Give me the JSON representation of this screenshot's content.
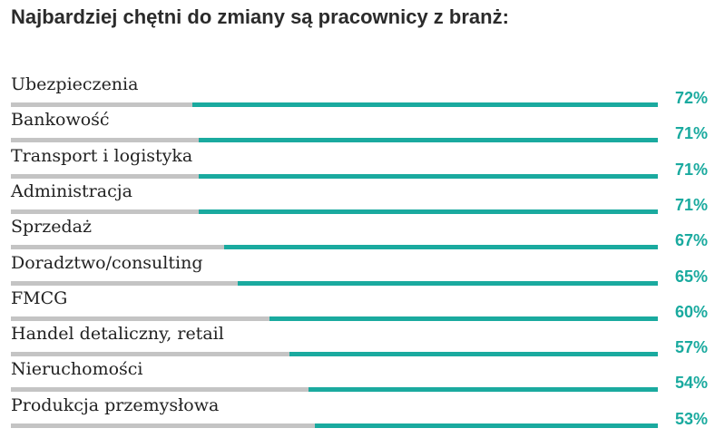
{
  "chart_data": {
    "type": "bar",
    "title": "Najbardziej chętni do zmiany są pracownicy z branż:",
    "categories": [
      "Ubezpieczenia",
      "Bankowość",
      "Transport i logistyka",
      "Administracja",
      "Sprzedaż",
      "Doradztwo/consulting",
      "FMCG",
      "Handel detaliczny,  retail",
      "Nieruchomości",
      "Produkcja przemysłowa"
    ],
    "values": [
      72,
      71,
      71,
      71,
      67,
      65,
      60,
      57,
      54,
      53
    ],
    "value_labels": [
      "72%",
      "71%",
      "71%",
      "71%",
      "67%",
      "65%",
      "60%",
      "57%",
      "54%",
      "53%"
    ],
    "ylim": [
      0,
      100
    ],
    "unit": "%",
    "colors": {
      "fill": "#1aaa9f",
      "track": "#c4c4c4",
      "label": "#1aaa9f"
    }
  }
}
